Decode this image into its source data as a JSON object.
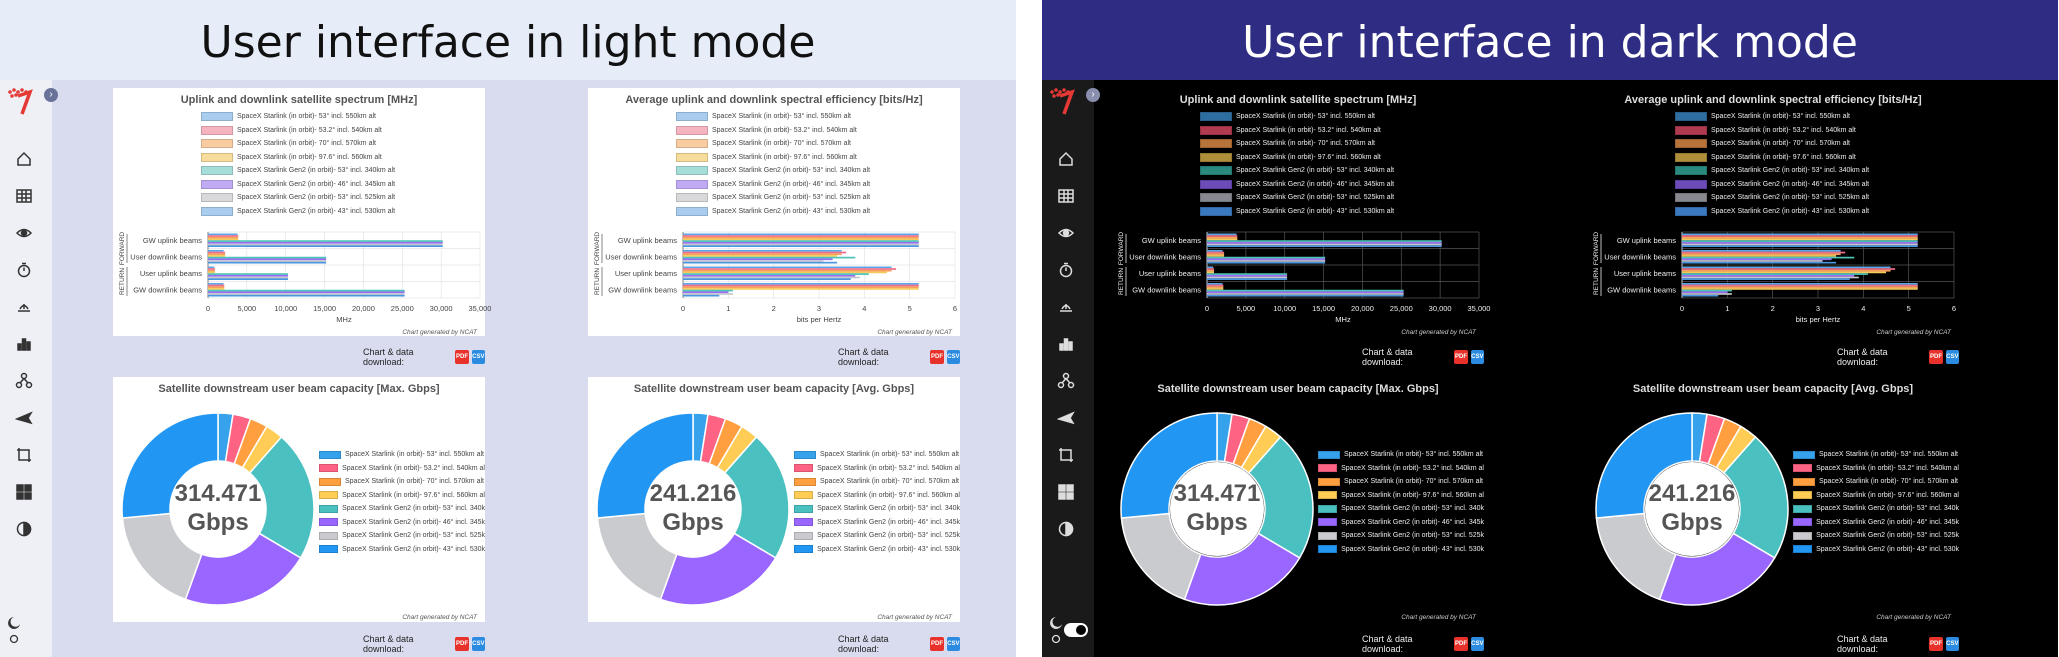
{
  "light": {
    "title": "User interface in light mode"
  },
  "dark": {
    "title": "User interface in dark mode"
  },
  "bar_legend": [
    "SpaceX Starlink (in orbit)- 53° incl. 550km alt",
    "SpaceX Starlink (in orbit)- 53.2° incl. 540km alt",
    "SpaceX Starlink (in orbit)- 70° incl. 570km alt",
    "SpaceX Starlink (in orbit)- 97.6° incl. 560km alt",
    "SpaceX Starlink Gen2 (in orbit)- 53° incl. 340km alt",
    "SpaceX Starlink Gen2 (in orbit)- 46° incl. 345km alt",
    "SpaceX Starlink Gen2 (in orbit)- 53° incl. 525km alt",
    "SpaceX Starlink Gen2 (in orbit)- 43° incl. 530km alt"
  ],
  "pie_legend": [
    "SpaceX Starlink (in orbit)- 53° incl. 550km alt",
    "SpaceX Starlink (in orbit)- 53.2° incl. 540km al",
    "SpaceX Starlink (in orbit)- 70° incl. 570km alt",
    "SpaceX Starlink (in orbit)- 97.6° incl. 560km al",
    "SpaceX Starlink Gen2 (in orbit)- 53° incl. 340k",
    "SpaceX Starlink Gen2 (in orbit)- 46° incl. 345k",
    "SpaceX Starlink Gen2 (in orbit)- 53° incl. 525k",
    "SpaceX Starlink Gen2 (in orbit)- 43° incl. 530k"
  ],
  "colors": {
    "light": [
      "#a9cdef",
      "#f6b3c0",
      "#f8cba1",
      "#f7dd9c",
      "#a5ddd8",
      "#c1aaf4",
      "#d9d9dc",
      "#a9cdef"
    ],
    "dark": [
      "#2e6ea0",
      "#b03a50",
      "#b8733a",
      "#b08f3a",
      "#2a8a80",
      "#6d4bb8",
      "#888890",
      "#3a78c0"
    ],
    "bars": [
      "#5aa7e8",
      "#f26d89",
      "#f5a35c",
      "#f5c95c",
      "#4dc4b8",
      "#9b6df5",
      "#c5c6cb",
      "#4a95e0"
    ],
    "pie": [
      "#36a2eb",
      "#ff6384",
      "#ff9f40",
      "#ffcd56",
      "#4bc0c0",
      "#9966ff",
      "#c9cbcf",
      "#2196f3"
    ]
  },
  "download_label": "Chart & data download:",
  "pdf_label": "PDF",
  "csv_label": "CSV",
  "credit": "Chart generated by NCAT",
  "chart_data": [
    {
      "type": "bar",
      "orientation": "horizontal",
      "title": "Uplink and downlink satellite spectrum [MHz]",
      "categories": [
        "GW uplink beams",
        "User downlink beams",
        "User uplink beams",
        "GW downlink beams"
      ],
      "group_labels": [
        "FORWARD",
        "RETURN"
      ],
      "xlabel": "MHz",
      "xlim": [
        0,
        35000
      ],
      "xticks": [
        "0",
        "5,000",
        "10,000",
        "15,000",
        "20,000",
        "25,000",
        "30,000",
        "35,000"
      ],
      "series_values": [
        [
          3800,
          2000,
          800,
          2000
        ],
        [
          3900,
          2200,
          900,
          2100
        ],
        [
          3900,
          2200,
          900,
          2100
        ],
        [
          3900,
          2200,
          900,
          2100
        ],
        [
          30200,
          15200,
          10300,
          25300
        ],
        [
          30200,
          15200,
          10300,
          25300
        ],
        [
          30200,
          15200,
          10300,
          25300
        ],
        [
          30200,
          15200,
          10300,
          25300
        ]
      ]
    },
    {
      "type": "bar",
      "orientation": "horizontal",
      "title": "Average uplink and downlink spectral efficiency [bits/Hz]",
      "categories": [
        "GW uplink beams",
        "User downlink beams",
        "User uplink beams",
        "GW downlink beams"
      ],
      "group_labels": [
        "FORWARD",
        "RETURN"
      ],
      "xlabel": "bits per Hertz",
      "xlim": [
        0,
        6
      ],
      "xticks": [
        "0",
        "1",
        "2",
        "3",
        "4",
        "5",
        "6"
      ],
      "series_values": [
        [
          5.2,
          3.5,
          4.6,
          5.2
        ],
        [
          5.2,
          3.6,
          4.7,
          5.2
        ],
        [
          5.2,
          3.5,
          4.6,
          5.2
        ],
        [
          5.2,
          3.4,
          4.5,
          5.2
        ],
        [
          5.2,
          3.8,
          4.1,
          1.1
        ],
        [
          5.2,
          3.3,
          3.8,
          1.0
        ],
        [
          5.2,
          3.1,
          3.9,
          1.1
        ],
        [
          5.2,
          3.4,
          3.7,
          0.8
        ]
      ]
    },
    {
      "type": "pie",
      "title": "Satellite downstream user beam capacity [Max. Gbps]",
      "center_value": "314.471",
      "center_unit": "Gbps",
      "values": [
        2.5,
        3,
        3,
        3,
        22,
        22,
        18,
        26.5
      ]
    },
    {
      "type": "pie",
      "title": "Satellite downstream user beam capacity [Avg. Gbps]",
      "center_value": "241.216",
      "center_unit": "Gbps",
      "values": [
        2.5,
        3,
        3,
        3,
        22,
        22,
        18,
        26.5
      ]
    }
  ]
}
